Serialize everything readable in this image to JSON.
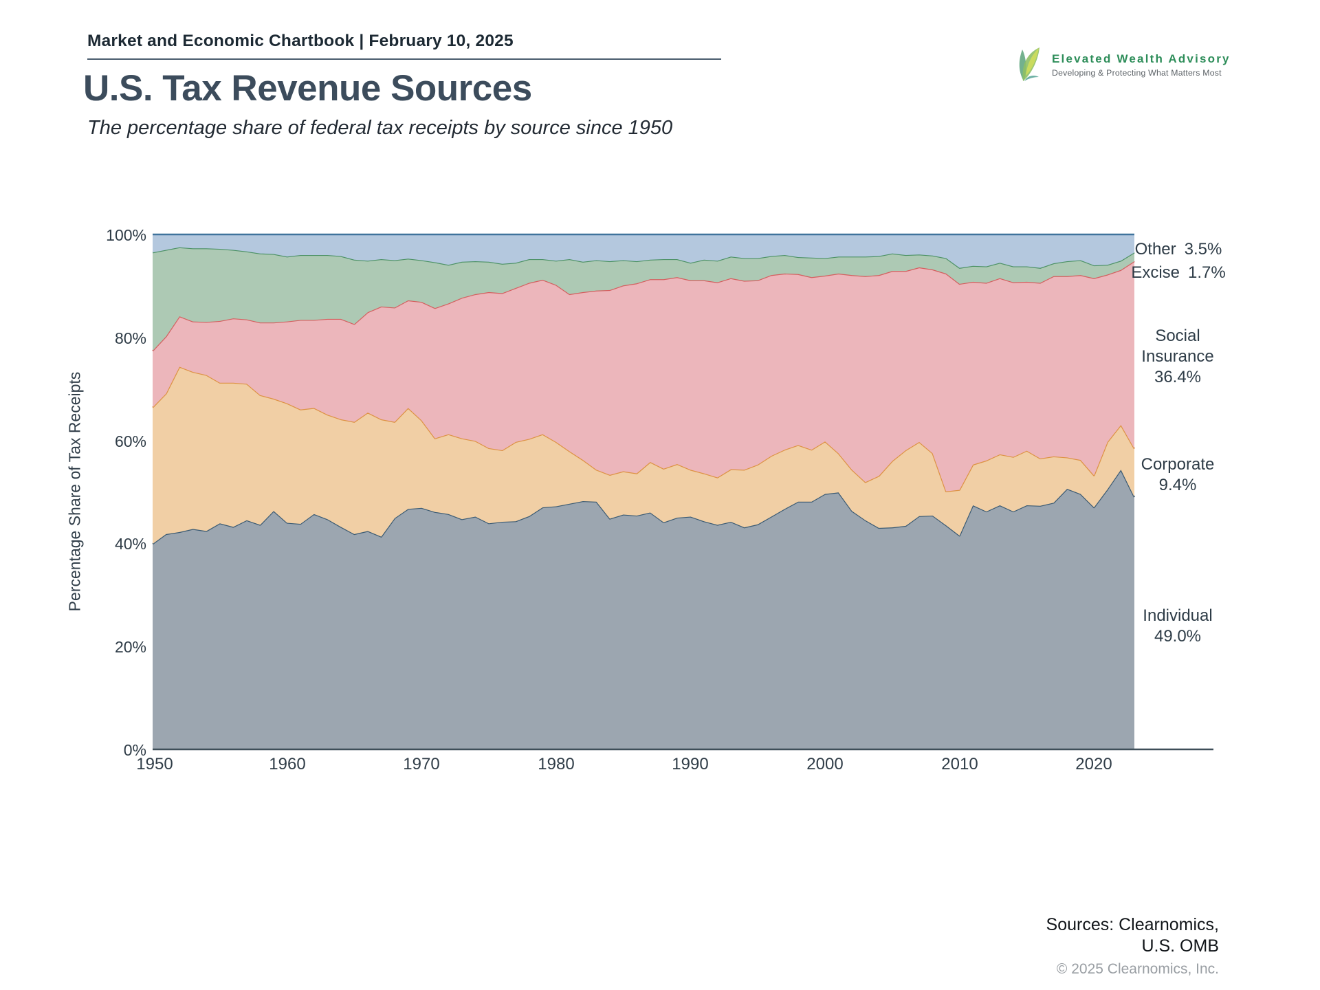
{
  "header": {
    "chartbook_label": "Market and Economic Chartbook | February 10, 2025"
  },
  "logo": {
    "name": "Elevated Wealth Advisory",
    "tagline": "Developing & Protecting What Matters Most",
    "accent_color": "#2d8d59"
  },
  "title": "U.S. Tax Revenue Sources",
  "subtitle": "The percentage share of federal tax receipts by source since 1950",
  "chart": {
    "ylabel": "Percentage Share of Tax Receipts",
    "yticks": [
      "0%",
      "20%",
      "40%",
      "60%",
      "80%",
      "100%"
    ],
    "xticks": [
      "1950",
      "1960",
      "1970",
      "1980",
      "1990",
      "2000",
      "2010",
      "2020"
    ]
  },
  "side_labels": {
    "other": {
      "name": "Other",
      "pct": "3.5%"
    },
    "excise": {
      "name": "Excise",
      "pct": "1.7%"
    },
    "social": {
      "name1": "Social",
      "name2": "Insurance",
      "pct": "36.4%"
    },
    "corporate": {
      "name": "Corporate",
      "pct": "9.4%"
    },
    "individual": {
      "name": "Individual",
      "pct": "49.0%"
    }
  },
  "footer": {
    "sources_line1": "Sources: Clearnomics,",
    "sources_line2": "U.S. OMB",
    "copyright": "© 2025 Clearnomics, Inc."
  },
  "chart_data": {
    "type": "area",
    "stacked": true,
    "title": "U.S. Tax Revenue Sources",
    "xlabel": "",
    "ylabel": "Percentage Share of Tax Receipts",
    "ylim": [
      0,
      100
    ],
    "x_range": [
      1950,
      2023
    ],
    "grid": false,
    "legend_position": "right-margin",
    "years": [
      1950,
      1951,
      1952,
      1953,
      1954,
      1955,
      1956,
      1957,
      1958,
      1959,
      1960,
      1961,
      1962,
      1963,
      1964,
      1965,
      1966,
      1967,
      1968,
      1969,
      1970,
      1971,
      1972,
      1973,
      1974,
      1975,
      1976,
      1977,
      1978,
      1979,
      1980,
      1981,
      1982,
      1983,
      1984,
      1985,
      1986,
      1987,
      1988,
      1989,
      1990,
      1991,
      1992,
      1993,
      1994,
      1995,
      1996,
      1997,
      1998,
      1999,
      2000,
      2001,
      2002,
      2003,
      2004,
      2005,
      2006,
      2007,
      2008,
      2009,
      2010,
      2011,
      2012,
      2013,
      2014,
      2015,
      2016,
      2017,
      2018,
      2019,
      2020,
      2021,
      2022,
      2023
    ],
    "series": [
      {
        "id": "individual",
        "name": "Individual",
        "end_pct": "49.0%",
        "fill": "#9ca6b0",
        "line": "#3a5a73",
        "values": [
          39.9,
          41.8,
          42.2,
          42.8,
          42.4,
          43.9,
          43.2,
          44.5,
          43.6,
          46.3,
          44.0,
          43.8,
          45.7,
          44.7,
          43.2,
          41.8,
          42.4,
          41.3,
          44.9,
          46.7,
          46.9,
          46.1,
          45.7,
          44.7,
          45.2,
          43.9,
          44.2,
          44.3,
          45.3,
          47.0,
          47.2,
          47.7,
          48.2,
          48.1,
          44.8,
          45.6,
          45.4,
          46.0,
          44.1,
          45.0,
          45.2,
          44.3,
          43.6,
          44.2,
          43.1,
          43.7,
          45.2,
          46.7,
          48.1,
          48.1,
          49.6,
          49.9,
          46.3,
          44.5,
          43.0,
          43.1,
          43.4,
          45.3,
          45.4,
          43.5,
          41.5,
          47.4,
          46.2,
          47.4,
          46.2,
          47.4,
          47.3,
          47.9,
          50.6,
          49.6,
          47.0,
          50.5,
          54.3,
          49.0
        ]
      },
      {
        "id": "corporate",
        "name": "Corporate",
        "end_pct": "9.4%",
        "fill": "#f1cfa5",
        "line": "#dd9243",
        "values": [
          26.5,
          27.3,
          32.1,
          30.5,
          30.3,
          27.3,
          28.0,
          26.5,
          25.2,
          21.8,
          23.2,
          22.2,
          20.6,
          20.3,
          20.9,
          21.8,
          23.0,
          22.8,
          18.7,
          19.6,
          17.0,
          14.3,
          15.5,
          15.7,
          14.7,
          14.6,
          13.9,
          15.4,
          15.0,
          14.2,
          12.5,
          10.2,
          8.0,
          6.2,
          8.5,
          8.4,
          8.2,
          9.8,
          10.4,
          10.4,
          9.1,
          9.3,
          9.2,
          10.2,
          11.2,
          11.6,
          11.8,
          11.5,
          11.0,
          10.1,
          10.2,
          7.6,
          8.0,
          7.4,
          10.1,
          12.9,
          14.7,
          14.4,
          12.1,
          6.6,
          8.9,
          7.9,
          9.9,
          9.9,
          10.6,
          10.6,
          9.2,
          9.0,
          6.1,
          6.6,
          6.2,
          9.2,
          8.7,
          9.4
        ]
      },
      {
        "id": "social-insurance",
        "name": "Social Insurance",
        "end_pct": "36.4%",
        "fill": "#ecb6bb",
        "line": "#d45f5f",
        "values": [
          11.0,
          11.1,
          9.8,
          9.8,
          10.3,
          12.0,
          12.5,
          12.5,
          14.1,
          14.8,
          15.9,
          17.4,
          17.1,
          18.6,
          19.5,
          19.0,
          19.5,
          21.9,
          22.2,
          20.9,
          23.0,
          25.3,
          25.4,
          27.3,
          28.5,
          30.3,
          30.5,
          29.9,
          30.3,
          30.0,
          30.5,
          30.5,
          32.6,
          34.8,
          35.9,
          36.1,
          36.9,
          35.5,
          36.8,
          36.3,
          36.8,
          37.5,
          37.9,
          37.1,
          36.7,
          35.8,
          35.1,
          34.2,
          33.2,
          33.5,
          32.2,
          34.9,
          37.8,
          40.0,
          39.0,
          36.9,
          34.8,
          33.9,
          35.7,
          42.3,
          40.0,
          35.5,
          34.5,
          34.2,
          33.9,
          32.8,
          34.1,
          35.0,
          35.2,
          35.9,
          38.3,
          32.5,
          30.1,
          36.4
        ]
      },
      {
        "id": "excise",
        "name": "Excise",
        "end_pct": "1.7%",
        "fill": "#adc9b4",
        "line": "#4b9164",
        "values": [
          19.1,
          16.8,
          13.4,
          14.2,
          14.3,
          14.0,
          13.3,
          13.2,
          13.4,
          13.3,
          12.6,
          12.6,
          12.6,
          12.4,
          12.2,
          12.5,
          10.0,
          9.2,
          9.2,
          8.1,
          8.1,
          8.9,
          7.5,
          7.0,
          6.4,
          5.9,
          5.7,
          4.9,
          4.6,
          4.0,
          4.7,
          6.8,
          5.9,
          5.9,
          5.6,
          4.9,
          4.3,
          3.8,
          3.9,
          3.5,
          3.4,
          4.0,
          4.2,
          4.2,
          4.4,
          4.3,
          3.7,
          3.6,
          3.3,
          3.8,
          3.4,
          3.3,
          3.6,
          3.8,
          3.7,
          3.4,
          3.1,
          2.5,
          2.7,
          3.0,
          3.1,
          3.1,
          3.2,
          3.0,
          3.1,
          3.0,
          2.9,
          2.5,
          2.9,
          2.9,
          2.5,
          1.9,
          1.8,
          1.7
        ]
      },
      {
        "id": "other",
        "name": "Other",
        "end_pct": "3.5%",
        "fill": "#b4c8de",
        "line": "#3f739c",
        "values": [
          3.5,
          3.0,
          2.5,
          2.7,
          2.3,
          2.8,
          3.0,
          3.3,
          3.7,
          3.8,
          4.3,
          4.0,
          4.0,
          4.0,
          4.2,
          4.9,
          5.1,
          4.8,
          5.0,
          4.1,
          5.0,
          5.4,
          5.9,
          5.3,
          5.2,
          5.4,
          6.0,
          5.5,
          4.8,
          4.8,
          5.1,
          4.8,
          5.3,
          5.0,
          5.2,
          5.0,
          5.2,
          4.9,
          4.8,
          4.8,
          5.5,
          4.9,
          5.1,
          4.3,
          4.6,
          4.6,
          4.1,
          4.0,
          4.4,
          4.5,
          4.6,
          4.3,
          4.3,
          4.3,
          4.2,
          3.7,
          4.0,
          4.1,
          4.1,
          4.6,
          6.5,
          6.1,
          6.2,
          5.5,
          6.2,
          6.2,
          6.5,
          5.6,
          5.2,
          5.0,
          6.0,
          5.9,
          5.1,
          3.5
        ]
      }
    ],
    "axis_color": "#3e4e58"
  }
}
